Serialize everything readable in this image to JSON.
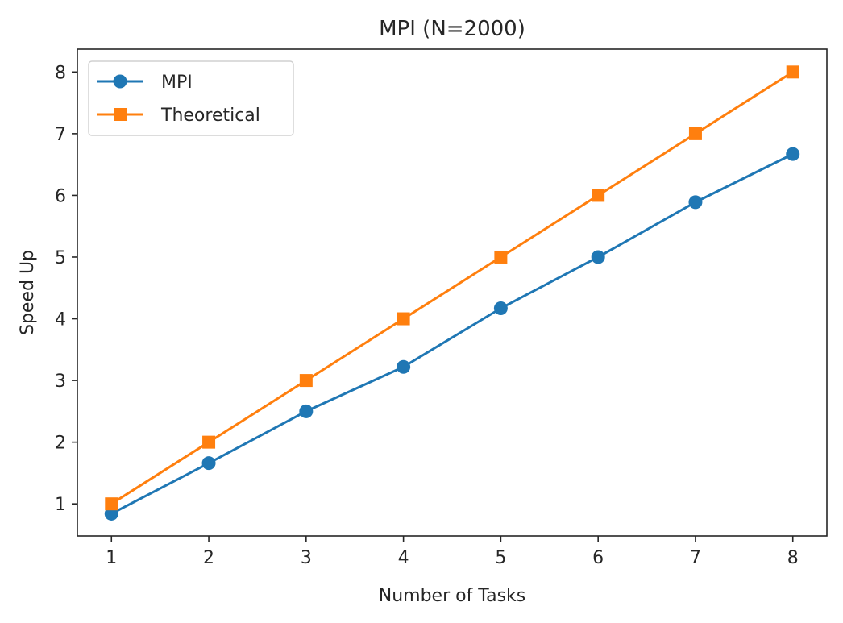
{
  "chart_data": {
    "type": "line",
    "title": "MPI (N=2000)",
    "xlabel": "Number of Tasks",
    "ylabel": "Speed Up",
    "x": [
      1,
      2,
      3,
      4,
      5,
      6,
      7,
      8
    ],
    "xticks": [
      "1",
      "2",
      "3",
      "4",
      "5",
      "6",
      "7",
      "8"
    ],
    "yticks": [
      "1",
      "2",
      "3",
      "4",
      "5",
      "6",
      "7",
      "8"
    ],
    "xlim": [
      0.65,
      8.35
    ],
    "ylim": [
      0.48,
      8.37
    ],
    "grid": false,
    "legend_position": "top-left",
    "series": [
      {
        "name": "MPI",
        "color": "#1f77b4",
        "marker": "circle",
        "values": [
          0.84,
          1.66,
          2.5,
          3.22,
          4.17,
          5.0,
          5.89,
          6.67
        ]
      },
      {
        "name": "Theoretical",
        "color": "#ff7f0e",
        "marker": "square",
        "values": [
          1,
          2,
          3,
          4,
          5,
          6,
          7,
          8
        ]
      }
    ]
  }
}
